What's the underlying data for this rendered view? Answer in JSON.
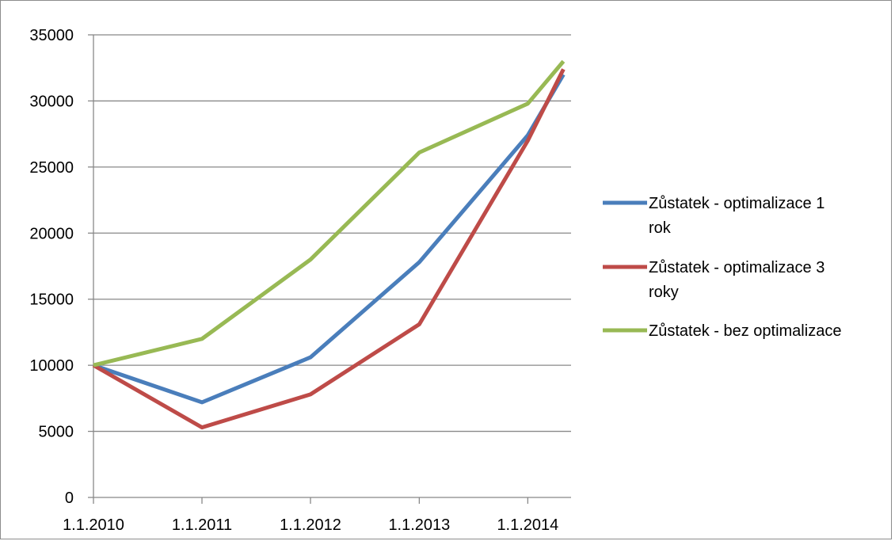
{
  "chart_data": {
    "type": "line",
    "title": "",
    "xlabel": "",
    "ylabel": "",
    "x": [
      "2010-01-01",
      "2011-01-01",
      "2012-01-01",
      "2013-01-01",
      "2014-01-01",
      "2014-05-01"
    ],
    "x_tick_labels": [
      "1.1.2010",
      "1.1.2011",
      "1.1.2012",
      "1.1.2013",
      "1.1.2014"
    ],
    "y_ticks": [
      0,
      5000,
      10000,
      15000,
      20000,
      25000,
      30000,
      35000
    ],
    "ylim": [
      0,
      35000
    ],
    "grid": "horizontal",
    "legend_position": "right",
    "series": [
      {
        "name": "Zůstatek - optimalizace 1 rok",
        "legend_lines": [
          "Zůstatek - optimalizace 1",
          "rok"
        ],
        "color": "#4a7ebb",
        "values": [
          10000,
          7200,
          10600,
          17800,
          27400,
          32000
        ]
      },
      {
        "name": "Zůstatek - optimalizace 3 roky",
        "legend_lines": [
          "Zůstatek - optimalizace 3",
          "roky"
        ],
        "color": "#be4b48",
        "values": [
          10000,
          5300,
          7800,
          13100,
          27000,
          32400
        ]
      },
      {
        "name": "Zůstatek - bez optimalizace",
        "legend_lines": [
          "Zůstatek - bez optimalizace"
        ],
        "color": "#98b954",
        "values": [
          10000,
          12000,
          18000,
          26100,
          29800,
          33000
        ]
      }
    ]
  }
}
